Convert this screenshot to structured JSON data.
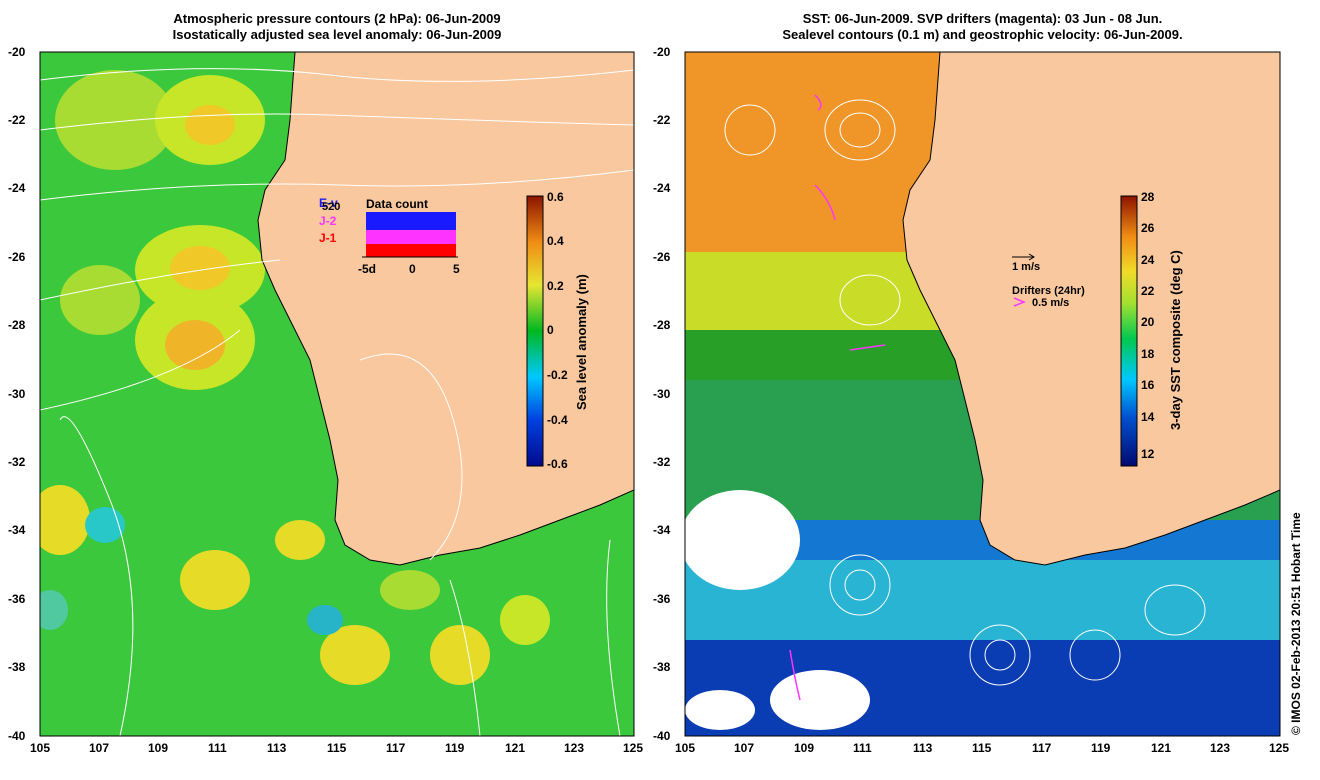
{
  "left_panel": {
    "title_line1": "Atmospheric pressure contours (2 hPa): 06-Jun-2009",
    "title_line2": "Isostatically adjusted sea level anomaly: 06-Jun-2009",
    "x_ticks": [
      "105",
      "107",
      "109",
      "111",
      "113",
      "115",
      "117",
      "119",
      "121",
      "123",
      "125"
    ],
    "y_ticks": [
      "-20",
      "-22",
      "-24",
      "-26",
      "-28",
      "-30",
      "-32",
      "-34",
      "-36",
      "-38",
      "-40"
    ],
    "colorbar_label": "Sea level anomaly (m)",
    "colorbar_ticks": [
      "0.6",
      "0.4",
      "0.2",
      "0",
      "-0.2",
      "-0.4",
      "-0.6"
    ],
    "data_count": {
      "title": "Data count",
      "legend_top": "E-v",
      "legend_top_num": "520",
      "legend_mid": "J-2",
      "legend_bottom": "J-1",
      "x_labels": [
        "-5d",
        "0",
        "5"
      ],
      "colors": {
        "envisat": "#1a1aff",
        "jason2": "#ff33ff",
        "jason1": "#ff0000"
      }
    }
  },
  "right_panel": {
    "title_line1": "SST: 06-Jun-2009. SVP drifters (magenta): 03 Jun - 08 Jun.",
    "title_line2": "Sealevel contours (0.1 m) and geostrophic velocity: 06-Jun-2009.",
    "x_ticks": [
      "105",
      "107",
      "109",
      "111",
      "113",
      "115",
      "117",
      "119",
      "121",
      "123",
      "125"
    ],
    "y_ticks": [
      "-20",
      "-22",
      "-24",
      "-26",
      "-28",
      "-30",
      "-32",
      "-34",
      "-36",
      "-38",
      "-40"
    ],
    "colorbar_label": "3-day SST composite (deg C)",
    "colorbar_ticks": [
      "28",
      "26",
      "24",
      "22",
      "20",
      "18",
      "16",
      "14",
      "12"
    ],
    "velocity_scale": "1 m/s",
    "drifter_title": "Drifters (24hr)",
    "drifter_speed": "0.5 m/s"
  },
  "credit": "© IMOS 02-Feb-2013 20:51 Hobart Time",
  "colors": {
    "land": "#f9c89e",
    "drifter": "#ff33ff"
  }
}
